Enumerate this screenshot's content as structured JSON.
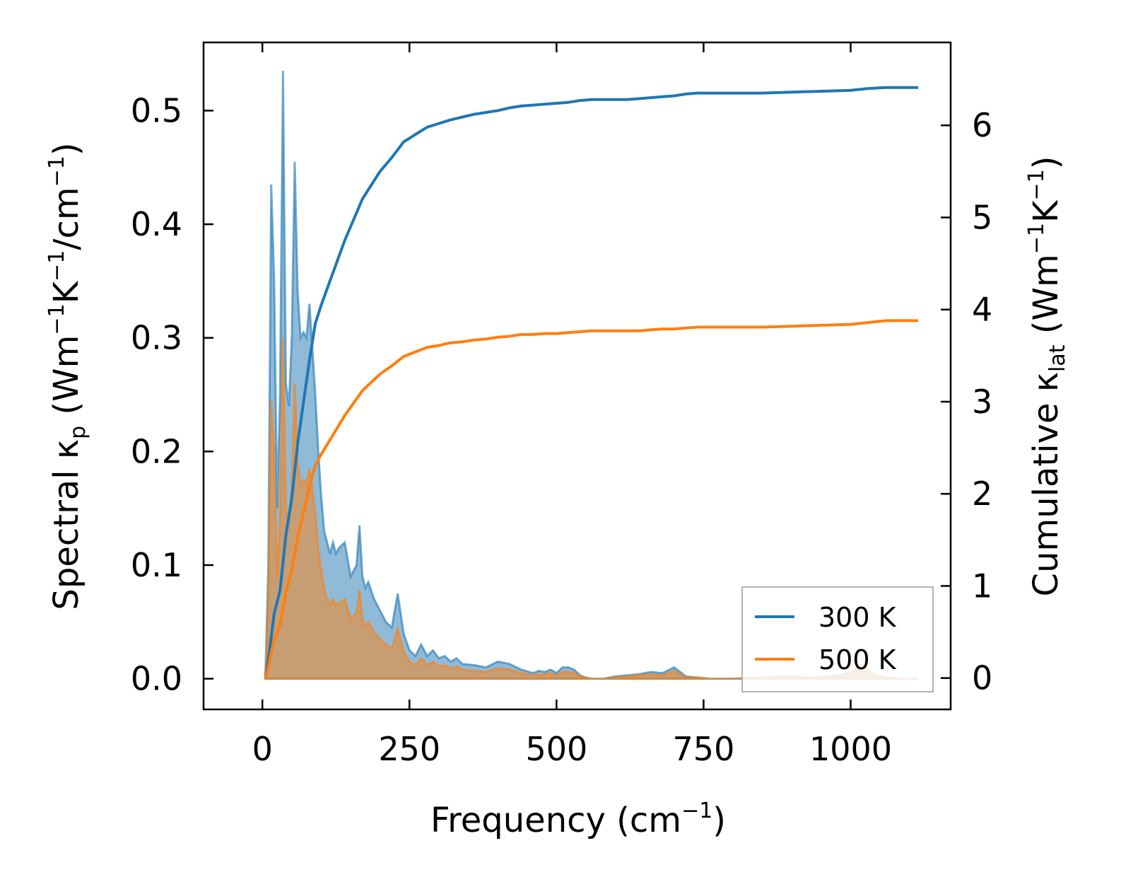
{
  "chart_data": {
    "type": "line",
    "xlabel": "Frequency (cm",
    "xlabel_sup": "−1",
    "xlabel_end": ")",
    "ylabel_left": {
      "prefix": "Spectral κ",
      "sub": "p",
      "body": " (Wm",
      "sup1": "−1",
      "mid": "K",
      "sup2": "−1",
      "mid2": "/cm",
      "sup3": "−1",
      "end": ")"
    },
    "ylabel_right": {
      "prefix": "Cumulative κ",
      "sub": "lat",
      "body": " (Wm",
      "sup1": "−1",
      "mid": "K",
      "sup2": "−1",
      "end": ")"
    },
    "xlim": [
      -100,
      1170
    ],
    "ylim_left": [
      -0.027,
      0.56
    ],
    "ylim_right": [
      -0.34,
      6.9
    ],
    "xticks": [
      0,
      250,
      500,
      750,
      1000
    ],
    "xtick_labels": [
      "0",
      "250",
      "500",
      "750",
      "1000"
    ],
    "yticks_left": [
      0.0,
      0.1,
      0.2,
      0.3,
      0.4,
      0.5
    ],
    "ytick_labels_left": [
      "0.0",
      "0.1",
      "0.2",
      "0.3",
      "0.4",
      "0.5"
    ],
    "yticks_right": [
      0,
      1,
      2,
      3,
      4,
      5,
      6
    ],
    "ytick_labels_right": [
      "0",
      "1",
      "2",
      "3",
      "4",
      "5",
      "6"
    ],
    "legend": {
      "position": "lower right"
    },
    "series": [
      {
        "name": "300 K",
        "color": "#1f77b4",
        "spectral_x": [
          5,
          10,
          15,
          20,
          25,
          30,
          35,
          40,
          45,
          50,
          55,
          60,
          65,
          70,
          75,
          80,
          85,
          90,
          95,
          100,
          105,
          110,
          115,
          120,
          125,
          130,
          140,
          150,
          160,
          165,
          170,
          175,
          180,
          190,
          200,
          210,
          220,
          230,
          240,
          250,
          260,
          270,
          280,
          290,
          300,
          310,
          320,
          330,
          340,
          360,
          380,
          400,
          420,
          440,
          460,
          470,
          480,
          490,
          500,
          510,
          520,
          530,
          540,
          550,
          560,
          580,
          600,
          620,
          640,
          660,
          680,
          700,
          710,
          720,
          740,
          760,
          800,
          850,
          880,
          900,
          940,
          960,
          980,
          1000,
          1010,
          1020,
          1030,
          1040,
          1060,
          1080,
          1100,
          1115
        ],
        "spectral_y": [
          0.0,
          0.1,
          0.435,
          0.35,
          0.15,
          0.25,
          0.535,
          0.26,
          0.24,
          0.3,
          0.455,
          0.34,
          0.3,
          0.305,
          0.3,
          0.33,
          0.29,
          0.25,
          0.2,
          0.16,
          0.13,
          0.12,
          0.11,
          0.12,
          0.11,
          0.115,
          0.12,
          0.09,
          0.1,
          0.135,
          0.09,
          0.08,
          0.085,
          0.07,
          0.06,
          0.05,
          0.045,
          0.075,
          0.04,
          0.025,
          0.02,
          0.03,
          0.02,
          0.025,
          0.018,
          0.02,
          0.015,
          0.018,
          0.013,
          0.012,
          0.01,
          0.015,
          0.013,
          0.008,
          0.005,
          0.007,
          0.006,
          0.008,
          0.005,
          0.01,
          0.01,
          0.008,
          0.003,
          0.001,
          0.0,
          0.0,
          0.002,
          0.003,
          0.004,
          0.006,
          0.005,
          0.01,
          0.006,
          0.002,
          0.001,
          0.0,
          0.0,
          0.001,
          0.002,
          0.002,
          0.001,
          0.002,
          0.003,
          0.006,
          0.008,
          0.009,
          0.005,
          0.003,
          0.001,
          0.0,
          0.0,
          0.0
        ],
        "cumulative_x": [
          5,
          10,
          20,
          30,
          40,
          50,
          60,
          70,
          80,
          90,
          100,
          120,
          140,
          160,
          170,
          180,
          200,
          220,
          240,
          260,
          280,
          300,
          320,
          340,
          360,
          380,
          400,
          420,
          440,
          460,
          480,
          500,
          520,
          540,
          560,
          580,
          600,
          620,
          640,
          660,
          680,
          700,
          720,
          740,
          760,
          800,
          850,
          900,
          950,
          1000,
          1030,
          1060,
          1115
        ],
        "cumulative_y": [
          0.0,
          0.2,
          0.7,
          0.95,
          1.55,
          1.95,
          2.55,
          3.0,
          3.45,
          3.85,
          4.05,
          4.4,
          4.75,
          5.05,
          5.2,
          5.3,
          5.5,
          5.65,
          5.82,
          5.9,
          5.98,
          6.02,
          6.06,
          6.09,
          6.12,
          6.14,
          6.16,
          6.19,
          6.21,
          6.22,
          6.23,
          6.24,
          6.25,
          6.27,
          6.28,
          6.28,
          6.28,
          6.28,
          6.29,
          6.3,
          6.31,
          6.32,
          6.34,
          6.35,
          6.35,
          6.35,
          6.35,
          6.36,
          6.37,
          6.38,
          6.4,
          6.41,
          6.41
        ]
      },
      {
        "name": "500 K",
        "color": "#ff7f0e",
        "spectral_x": [
          5,
          10,
          15,
          20,
          25,
          30,
          35,
          40,
          45,
          50,
          55,
          60,
          65,
          70,
          75,
          80,
          85,
          90,
          95,
          100,
          105,
          110,
          115,
          120,
          125,
          130,
          140,
          150,
          160,
          165,
          170,
          175,
          180,
          190,
          200,
          210,
          220,
          230,
          240,
          250,
          260,
          270,
          280,
          290,
          300,
          310,
          320,
          330,
          340,
          360,
          380,
          400,
          420,
          440,
          460,
          470,
          480,
          490,
          500,
          510,
          520,
          530,
          540,
          550,
          560,
          580,
          600,
          620,
          640,
          660,
          680,
          700,
          710,
          720,
          740,
          760,
          800,
          850,
          880,
          900,
          940,
          960,
          980,
          1000,
          1010,
          1020,
          1030,
          1040,
          1060,
          1080,
          1100,
          1115
        ],
        "spectral_y": [
          0.0,
          0.06,
          0.245,
          0.2,
          0.09,
          0.14,
          0.3,
          0.15,
          0.14,
          0.17,
          0.26,
          0.19,
          0.17,
          0.175,
          0.17,
          0.185,
          0.165,
          0.145,
          0.115,
          0.095,
          0.08,
          0.07,
          0.065,
          0.07,
          0.065,
          0.067,
          0.07,
          0.053,
          0.058,
          0.078,
          0.053,
          0.047,
          0.05,
          0.041,
          0.035,
          0.03,
          0.027,
          0.044,
          0.024,
          0.015,
          0.012,
          0.018,
          0.012,
          0.015,
          0.011,
          0.012,
          0.009,
          0.011,
          0.008,
          0.007,
          0.006,
          0.009,
          0.008,
          0.005,
          0.003,
          0.004,
          0.004,
          0.005,
          0.003,
          0.006,
          0.006,
          0.005,
          0.002,
          0.001,
          0.0,
          0.0,
          0.001,
          0.002,
          0.003,
          0.004,
          0.003,
          0.007,
          0.004,
          0.001,
          0.001,
          0.0,
          0.0,
          0.001,
          0.002,
          0.002,
          0.001,
          0.002,
          0.002,
          0.005,
          0.009,
          0.012,
          0.008,
          0.003,
          0.001,
          0.0,
          0.0,
          0.0
        ],
        "cumulative_x": [
          5,
          10,
          20,
          30,
          40,
          50,
          60,
          70,
          80,
          90,
          100,
          120,
          140,
          160,
          170,
          180,
          200,
          220,
          240,
          260,
          280,
          300,
          320,
          340,
          360,
          380,
          400,
          420,
          440,
          460,
          480,
          500,
          520,
          540,
          560,
          580,
          600,
          620,
          640,
          660,
          680,
          700,
          720,
          740,
          760,
          800,
          850,
          900,
          950,
          1000,
          1030,
          1060,
          1115
        ],
        "cumulative_y": [
          0.0,
          0.12,
          0.42,
          0.57,
          0.93,
          1.17,
          1.53,
          1.8,
          2.07,
          2.31,
          2.43,
          2.64,
          2.85,
          3.03,
          3.12,
          3.18,
          3.3,
          3.39,
          3.49,
          3.54,
          3.59,
          3.61,
          3.64,
          3.65,
          3.67,
          3.68,
          3.7,
          3.71,
          3.73,
          3.73,
          3.74,
          3.74,
          3.75,
          3.76,
          3.77,
          3.77,
          3.77,
          3.77,
          3.77,
          3.78,
          3.79,
          3.79,
          3.8,
          3.81,
          3.81,
          3.81,
          3.81,
          3.82,
          3.83,
          3.84,
          3.86,
          3.88,
          3.88
        ]
      }
    ]
  }
}
